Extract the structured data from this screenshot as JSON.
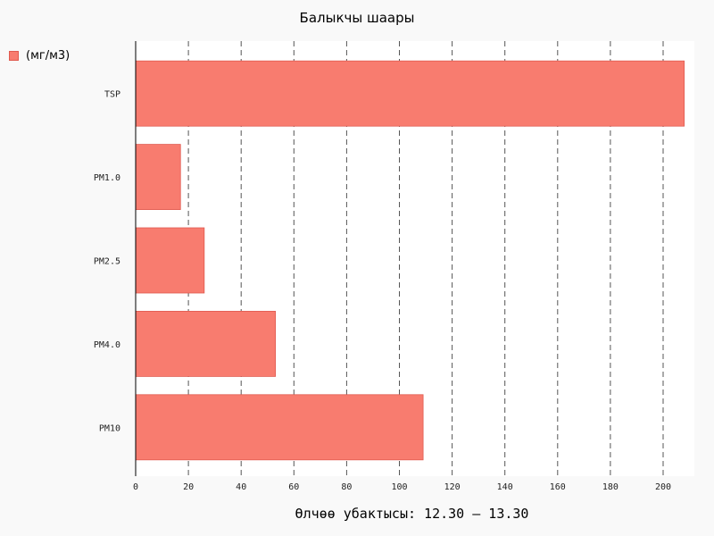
{
  "chart_data": {
    "type": "bar",
    "orientation": "horizontal",
    "title": "Балыкчы шаары",
    "xlabel": "Өлчөө убактысы: 12.30 – 13.30",
    "ylabel": "",
    "categories": [
      "TSP",
      "PM1.0",
      "PM2.5",
      "PM4.0",
      "PM10"
    ],
    "series": [
      {
        "name": "(мг/м3)",
        "values": [
          208,
          17,
          26,
          53,
          109
        ],
        "color": "#f87c6f"
      }
    ],
    "xlim": [
      0,
      212
    ],
    "x_ticks": [
      "0",
      "20",
      "40",
      "60",
      "80",
      "100",
      "120",
      "140",
      "160",
      "180",
      "200"
    ],
    "grid": "vertical dashed",
    "legend_position": "top-left"
  },
  "colors": {
    "background": "#f9f9f9",
    "plot_area": "#ffffff",
    "bar_fill": "#f87c6f",
    "bar_stroke": "#e05a4f",
    "grid": "#555555"
  }
}
